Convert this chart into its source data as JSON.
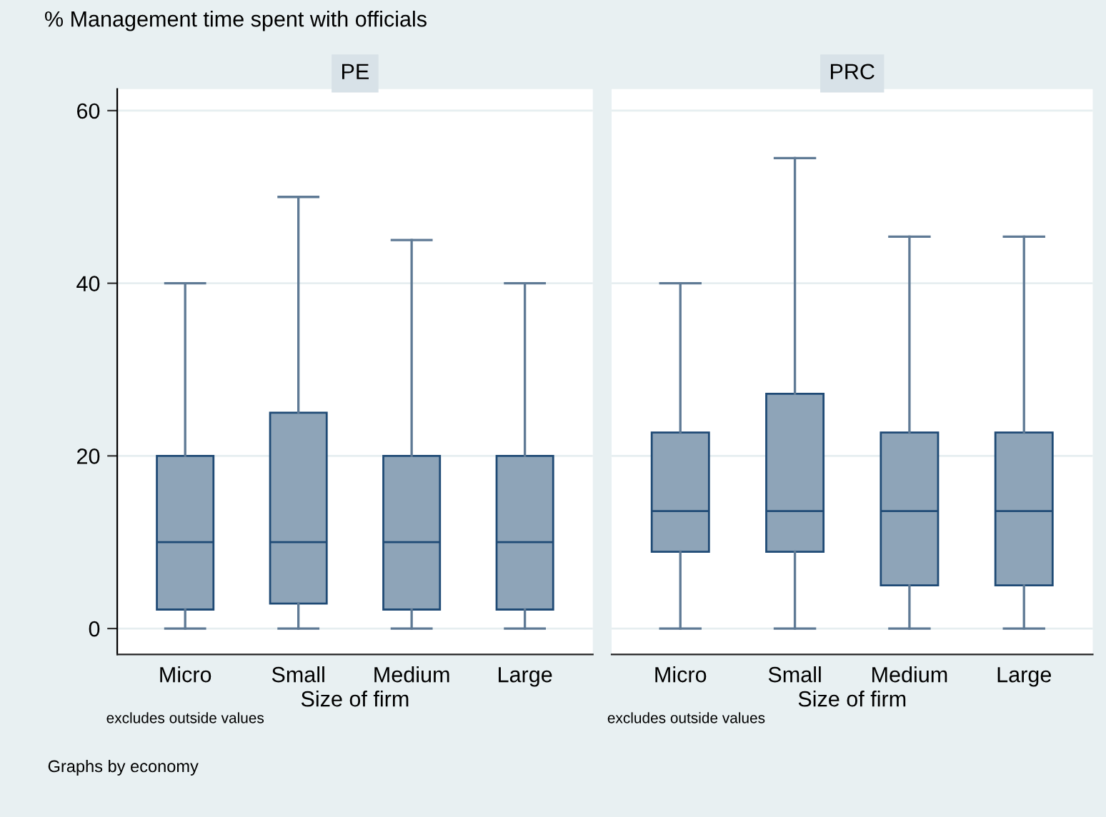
{
  "chart_data": [
    {
      "type": "box",
      "title": "PE",
      "ylabel": "% Management time spent with officials",
      "xlabel": "Size of firm",
      "categories": [
        "Micro",
        "Small",
        "Medium",
        "Large"
      ],
      "boxes": [
        {
          "low": 0,
          "q1": 2.2,
          "median": 10,
          "q3": 20,
          "high": 40
        },
        {
          "low": 0,
          "q1": 2.9,
          "median": 10,
          "q3": 25,
          "high": 50
        },
        {
          "low": 0,
          "q1": 2.2,
          "median": 10,
          "q3": 20,
          "high": 45
        },
        {
          "low": 0,
          "q1": 2.2,
          "median": 10,
          "q3": 20,
          "high": 40
        }
      ],
      "color": "#8ea4b8",
      "ylim": [
        -3,
        62.5
      ],
      "yticks": [
        0,
        20,
        40,
        60
      ],
      "grid": "y",
      "annotations": [
        "excludes outside values",
        "Graphs by economy"
      ]
    },
    {
      "type": "box",
      "title": "PRC",
      "xlabel": "Size of firm",
      "categories": [
        "Micro",
        "Small",
        "Medium",
        "Large"
      ],
      "boxes": [
        {
          "low": 0,
          "q1": 8.9,
          "median": 13.6,
          "q3": 22.7,
          "high": 40
        },
        {
          "low": 0,
          "q1": 8.9,
          "median": 13.6,
          "q3": 27.2,
          "high": 54.5
        },
        {
          "low": 0,
          "q1": 5.0,
          "median": 13.6,
          "q3": 22.7,
          "high": 45.4
        },
        {
          "low": 0,
          "q1": 5.0,
          "median": 13.6,
          "q3": 22.7,
          "high": 45.4
        }
      ],
      "color": "#8ea4b8",
      "ylim": [
        -3,
        62.5
      ],
      "yticks": [
        0,
        20,
        40,
        60
      ],
      "grid": "y",
      "tick_labels": "x",
      "annotations": [
        "excludes outside values"
      ]
    }
  ]
}
